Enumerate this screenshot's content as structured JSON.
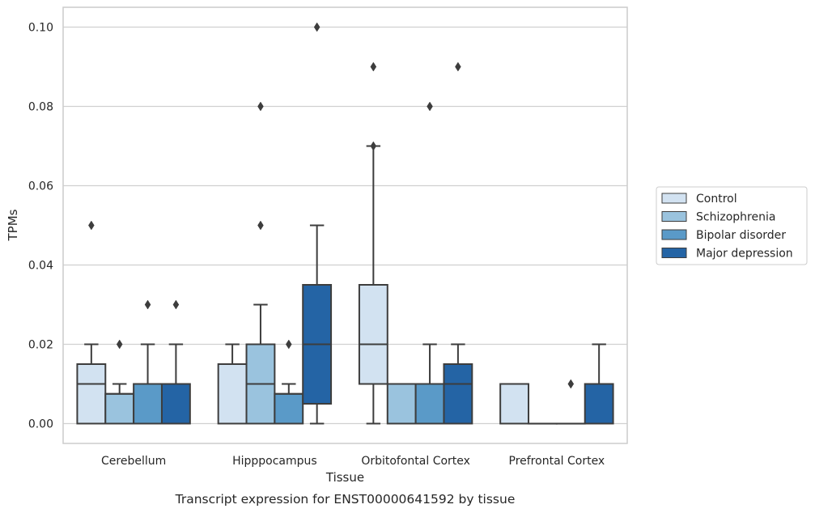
{
  "chart_data": {
    "type": "box",
    "title": "",
    "caption": "Transcript expression for ENST00000641592 by tissue",
    "xlabel": "Tissue",
    "ylabel": "TPMs",
    "ylim": [
      -0.005,
      0.105
    ],
    "yticks": [
      "0.00",
      "0.02",
      "0.04",
      "0.06",
      "0.08",
      "0.10"
    ],
    "grid": "horizontal",
    "legend_position": "right",
    "categories": [
      "Cerebellum",
      "Hipppocampus",
      "Orbitofontal Cortex",
      "Prefrontal Cortex"
    ],
    "series": [
      {
        "name": "Control",
        "color": "#d2e2f1",
        "boxes": [
          {
            "q1": 0,
            "median": 0.01,
            "q3": 0.015,
            "whisker_low": 0,
            "whisker_high": 0.02,
            "outliers": [
              0.05
            ]
          },
          {
            "q1": 0,
            "median": 0,
            "q3": 0.015,
            "whisker_low": 0,
            "whisker_high": 0.02,
            "outliers": []
          },
          {
            "q1": 0.01,
            "median": 0.02,
            "q3": 0.035,
            "whisker_low": 0,
            "whisker_high": 0.07,
            "outliers": [
              0.09,
              0.07
            ]
          },
          {
            "q1": 0,
            "median": 0,
            "q3": 0.01,
            "whisker_low": 0,
            "whisker_high": 0.01,
            "outliers": []
          }
        ]
      },
      {
        "name": "Schizophrenia",
        "color": "#9ac3de",
        "boxes": [
          {
            "q1": 0,
            "median": 0.0075,
            "q3": 0.0075,
            "whisker_low": 0,
            "whisker_high": 0.01,
            "outliers": [
              0.02
            ]
          },
          {
            "q1": 0,
            "median": 0.01,
            "q3": 0.02,
            "whisker_low": 0,
            "whisker_high": 0.03,
            "outliers": [
              0.08,
              0.05
            ]
          },
          {
            "q1": 0,
            "median": 0.01,
            "q3": 0.01,
            "whisker_low": 0,
            "whisker_high": 0.01,
            "outliers": []
          },
          {
            "q1": 0,
            "median": 0,
            "q3": 0,
            "whisker_low": 0,
            "whisker_high": 0,
            "outliers": []
          }
        ]
      },
      {
        "name": "Bipolar disorder",
        "color": "#5a9ac8",
        "boxes": [
          {
            "q1": 0,
            "median": 0.01,
            "q3": 0.01,
            "whisker_low": 0,
            "whisker_high": 0.02,
            "outliers": [
              0.03
            ]
          },
          {
            "q1": 0,
            "median": 0.0075,
            "q3": 0.0075,
            "whisker_low": 0,
            "whisker_high": 0.01,
            "outliers": [
              0.02
            ]
          },
          {
            "q1": 0,
            "median": 0.01,
            "q3": 0.01,
            "whisker_low": 0,
            "whisker_high": 0.02,
            "outliers": [
              0.08
            ]
          },
          {
            "q1": 0,
            "median": 0,
            "q3": 0,
            "whisker_low": 0,
            "whisker_high": 0,
            "outliers": [
              0.01
            ]
          }
        ]
      },
      {
        "name": "Major depression",
        "color": "#2464a5",
        "boxes": [
          {
            "q1": 0,
            "median": 0.01,
            "q3": 0.01,
            "whisker_low": 0,
            "whisker_high": 0.02,
            "outliers": [
              0.03
            ]
          },
          {
            "q1": 0.005,
            "median": 0.02,
            "q3": 0.035,
            "whisker_low": 0,
            "whisker_high": 0.05,
            "outliers": [
              0.1
            ]
          },
          {
            "q1": 0,
            "median": 0.01,
            "q3": 0.015,
            "whisker_low": 0,
            "whisker_high": 0.02,
            "outliers": [
              0.09
            ]
          },
          {
            "q1": 0,
            "median": 0.01,
            "q3": 0.01,
            "whisker_low": 0,
            "whisker_high": 0.02,
            "outliers": []
          }
        ]
      }
    ]
  }
}
